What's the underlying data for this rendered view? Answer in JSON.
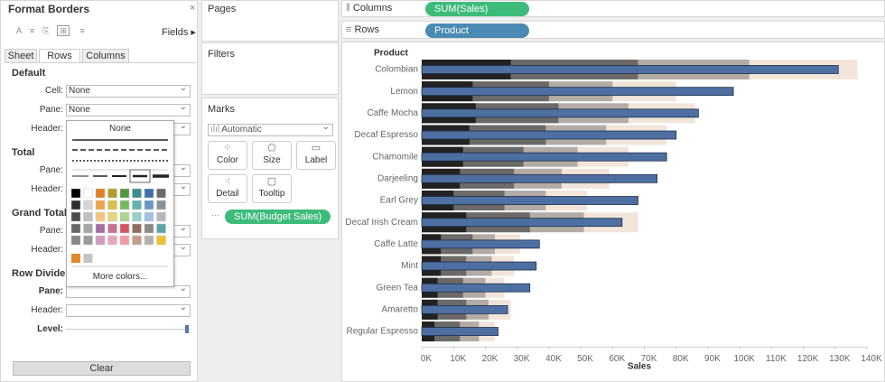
{
  "format_panel": {
    "title": "Format Borders",
    "fields": "Fields",
    "tabs": [
      "Sheet",
      "Rows",
      "Columns"
    ],
    "sections": [
      {
        "title": "Default",
        "rows": [
          {
            "label": "Cell:",
            "value": "None"
          },
          {
            "label": "Pane:",
            "value": "None"
          },
          {
            "label": "Header:"
          }
        ]
      },
      {
        "title": "Total",
        "rows": [
          {
            "label": "Pane:"
          },
          {
            "label": "Header:"
          }
        ]
      },
      {
        "title": "Grand Total",
        "rows": [
          {
            "label": "Pane:"
          },
          {
            "label": "Header:"
          }
        ]
      },
      {
        "title": "Row Divider",
        "rows": [
          {
            "label": "Pane:"
          },
          {
            "label": "Header:"
          },
          {
            "label": "Level:"
          }
        ]
      }
    ],
    "dropdown": {
      "none": "None",
      "more": "More colors..."
    },
    "clear": "Clear"
  },
  "shelves": {
    "pages": "Pages",
    "filters": "Filters",
    "marks": "Marks",
    "mark_type": "Automatic",
    "mark_buttons": [
      "Color",
      "Size",
      "Label",
      "Detail",
      "Tooltip"
    ],
    "mark_field": "SUM(Budget Sales)",
    "columns_label": "Columns",
    "columns_pill": "SUM(Sales)",
    "rows_label": "Rows",
    "rows_pill": "Product"
  },
  "chart_data": {
    "type": "bar",
    "y_header": "Product",
    "xlabel": "Sales",
    "categories": [
      "Colombian",
      "Lemon",
      "Caffe Mocha",
      "Decaf Espresso",
      "Chamomile",
      "Darjeeling",
      "Earl Grey",
      "Decaf Irish Cream",
      "Caffe Latte",
      "Mint",
      "Green Tea",
      "Amaretto",
      "Regular Espresso"
    ],
    "values": [
      131000,
      98000,
      87000,
      80000,
      77000,
      74000,
      68000,
      63000,
      37000,
      36000,
      34000,
      27000,
      24000
    ],
    "color": "#4e6fa1",
    "bands": [
      {
        "color": "#f1e5db",
        "values": [
          137000,
          80000,
          86000,
          77000,
          65000,
          59000,
          52000,
          68000,
          31000,
          29000,
          26000,
          28000,
          23000
        ]
      },
      {
        "color": "#b3aca6",
        "values": [
          103000,
          60000,
          65000,
          58000,
          49000,
          44000,
          39000,
          51000,
          23000,
          22000,
          20000,
          21000,
          18000
        ]
      },
      {
        "color": "#6c6a68",
        "values": [
          68000,
          40000,
          43000,
          39000,
          32000,
          29000,
          26000,
          34000,
          16000,
          14000,
          13000,
          14000,
          12000
        ]
      },
      {
        "color": "#222222",
        "values": [
          28000,
          16000,
          17000,
          15000,
          13000,
          12000,
          10000,
          14000,
          6000,
          6000,
          5000,
          5000,
          4000
        ]
      }
    ],
    "xlim": [
      0,
      140000
    ],
    "xticks": [
      {
        "value": 0,
        "label": "0K"
      },
      {
        "value": 10000,
        "label": "10K"
      },
      {
        "value": 20000,
        "label": "20K"
      },
      {
        "value": 30000,
        "label": "30K"
      },
      {
        "value": 40000,
        "label": "40K"
      },
      {
        "value": 50000,
        "label": "50K"
      },
      {
        "value": 60000,
        "label": "60K"
      },
      {
        "value": 70000,
        "label": "70K"
      },
      {
        "value": 80000,
        "label": "80K"
      },
      {
        "value": 90000,
        "label": "90K"
      },
      {
        "value": 100000,
        "label": "100K"
      },
      {
        "value": 110000,
        "label": "110K"
      },
      {
        "value": 120000,
        "label": "120K"
      },
      {
        "value": 130000,
        "label": "130K"
      },
      {
        "value": 140000,
        "label": "140K"
      }
    ]
  }
}
